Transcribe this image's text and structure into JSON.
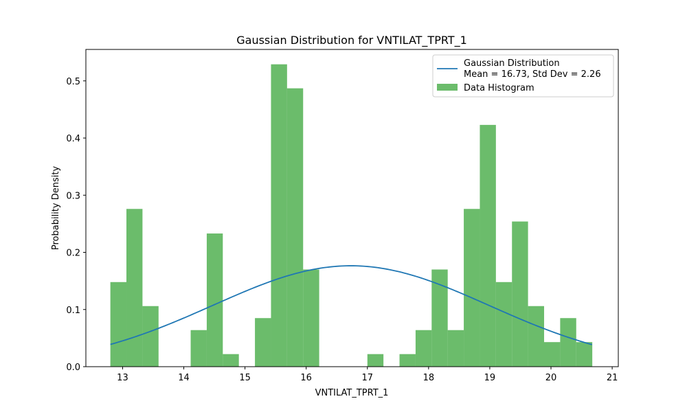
{
  "chart_data": {
    "type": "bar",
    "title": "Gaussian Distribution for VNTILAT_TPRT_1",
    "xlabel": "VNTILAT_TPRT_1",
    "ylabel": "Probability Density",
    "xlim": [
      12.4,
      21.1
    ],
    "ylim": [
      0,
      0.555
    ],
    "xticks": [
      13,
      14,
      15,
      16,
      17,
      18,
      19,
      20,
      21
    ],
    "yticks": [
      0.0,
      0.1,
      0.2,
      0.3,
      0.4,
      0.5
    ],
    "grid": false,
    "legend_position": "top-right",
    "colors": {
      "histogram": "#2ca02c",
      "curve": "#1f77b4"
    },
    "histogram": {
      "name": "Data Histogram",
      "bin_start": 12.8,
      "bin_width": 0.2625,
      "values": [
        0.148,
        0.276,
        0.106,
        0,
        0,
        0.064,
        0.233,
        0.022,
        0,
        0.085,
        0.529,
        0.487,
        0.17,
        0,
        0,
        0,
        0.022,
        0,
        0.022,
        0.064,
        0.17,
        0.064,
        0.276,
        0.423,
        0.148,
        0.254,
        0.106,
        0.043,
        0.085,
        0.043
      ]
    },
    "gaussian": {
      "legend_line1": "Gaussian Distribution",
      "legend_line2": "Mean = 16.73, Std Dev = 2.26",
      "mean": 16.73,
      "std": 2.26,
      "x_range": [
        12.8,
        20.67
      ]
    }
  }
}
